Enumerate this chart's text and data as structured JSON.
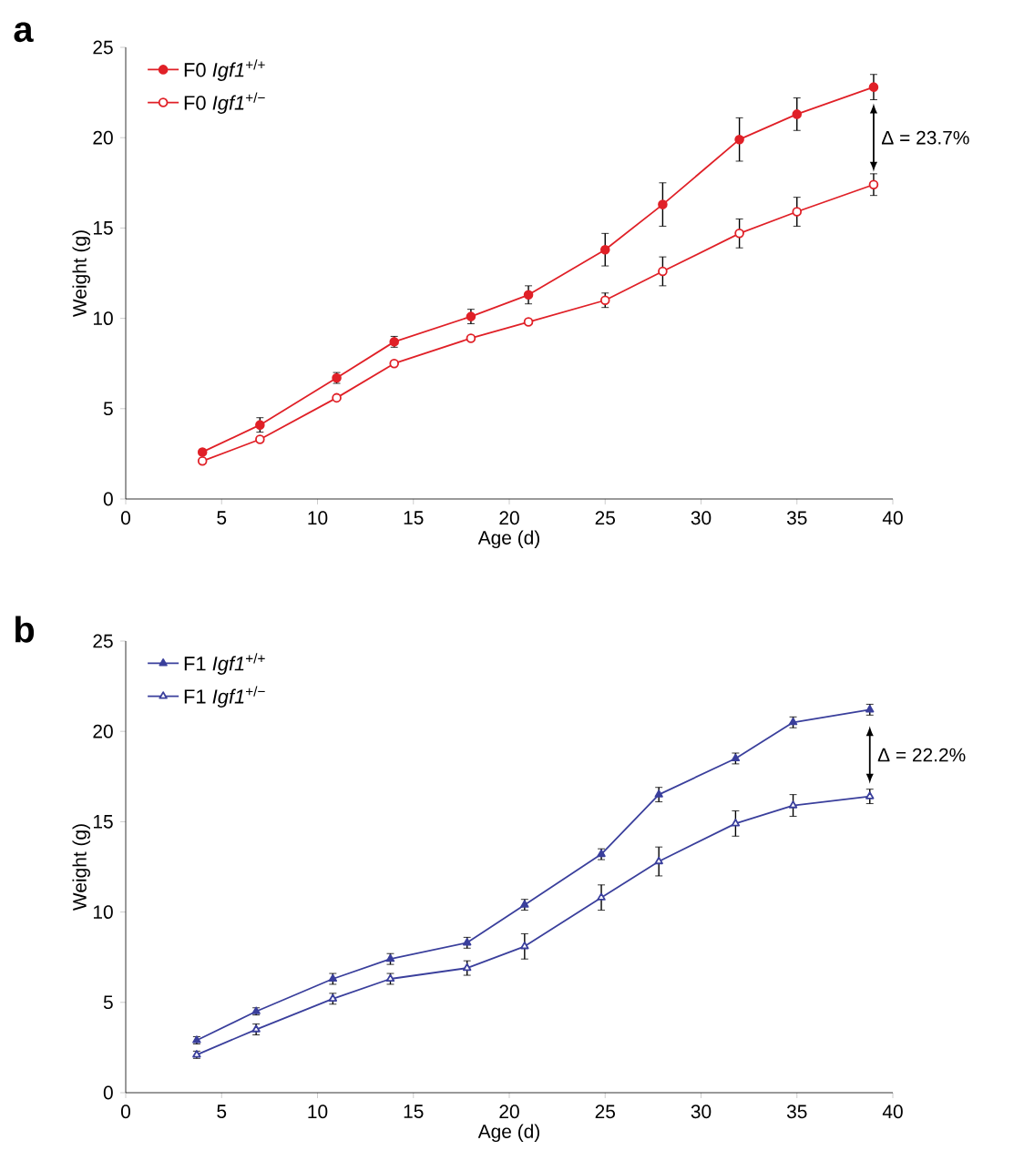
{
  "chart_data": [
    {
      "type": "line",
      "title": "a",
      "xlabel": "Age (d)",
      "ylabel": "Weight (g)",
      "xlim": [
        0,
        40
      ],
      "ylim": [
        0,
        25
      ],
      "xticks": [
        0,
        5,
        10,
        15,
        20,
        25,
        30,
        35,
        40
      ],
      "yticks": [
        0,
        5,
        10,
        15,
        20,
        25
      ],
      "legend": "top left",
      "marker": "circle",
      "line_style": "solid",
      "x": [
        4,
        7,
        11,
        14,
        18,
        21,
        25,
        28,
        32,
        35,
        39
      ],
      "series": [
        {
          "name": "F0 *Igf1*$^{+/+}$",
          "color": "#e02027",
          "values": [
            2.6,
            4.1,
            6.7,
            8.7,
            10.1,
            11.3,
            13.8,
            16.3,
            19.9,
            21.3,
            22.8
          ],
          "errors": [
            null,
            0.4,
            0.3,
            0.3,
            0.4,
            0.5,
            0.9,
            1.2,
            1.2,
            0.9,
            0.7
          ]
        },
        {
          "name": "F0 *Igf1*$^{+/−}$",
          "color": "#e02027",
          "values": [
            2.1,
            3.3,
            5.6,
            7.5,
            8.9,
            9.8,
            11.0,
            12.6,
            14.7,
            15.9,
            17.4
          ],
          "errors": [
            null,
            null,
            null,
            null,
            null,
            null,
            0.4,
            0.8,
            0.8,
            0.8,
            0.6
          ]
        }
      ],
      "annotations": [
        {
          "text": "Δ = 23.7%",
          "x": 39,
          "y": 22.8
        }
      ]
    },
    {
      "type": "line",
      "title": "b",
      "xlabel": "Age (d)",
      "ylabel": "Weight (g)",
      "xlim": [
        0,
        40
      ],
      "ylim": [
        0,
        25
      ],
      "xticks": [
        0,
        5,
        10,
        15,
        20,
        25,
        30,
        35,
        40
      ],
      "yticks": [
        0,
        5,
        10,
        15,
        20,
        25
      ],
      "legend": "top left",
      "marker": "triangle",
      "line_style": "solid",
      "x": [
        3.7,
        6.8,
        10.8,
        13.8,
        17.8,
        20.8,
        24.8,
        27.8,
        31.8,
        34.8,
        38.8
      ],
      "series": [
        {
          "name": "F1 *Igf1*$^{+/+}$",
          "color": "#3a3f9c",
          "values": [
            2.9,
            4.5,
            6.3,
            7.4,
            8.3,
            10.4,
            13.2,
            16.5,
            18.5,
            20.5,
            21.2
          ],
          "errors": [
            0.2,
            0.2,
            0.3,
            0.3,
            0.3,
            0.3,
            0.3,
            0.4,
            0.3,
            0.3,
            0.3
          ]
        },
        {
          "name": "F1 *Igf1*$^{+/−}$",
          "color": "#3a3f9c",
          "values": [
            2.1,
            3.5,
            5.2,
            6.3,
            6.9,
            8.1,
            10.8,
            12.8,
            14.9,
            15.9,
            16.4
          ],
          "errors": [
            0.2,
            0.3,
            0.3,
            0.3,
            0.4,
            0.7,
            0.7,
            0.8,
            0.7,
            0.6,
            0.4
          ]
        }
      ],
      "annotations": [
        {
          "text": "Δ = 22.2%",
          "x": 38.8,
          "y": 21.2
        }
      ]
    }
  ]
}
